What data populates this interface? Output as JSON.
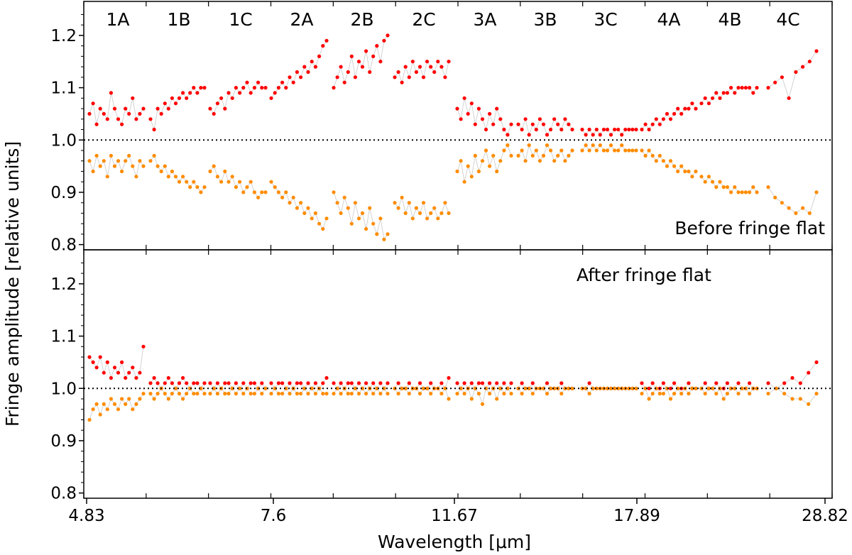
{
  "chart_data": {
    "type": "scatter",
    "xlabel": "Wavelength [μm]",
    "ylabel": "Fringe amplitude [relative units]",
    "x_tick_labels": [
      "4.83",
      "7.6",
      "11.67",
      "17.89",
      "28.82"
    ],
    "ylim": [
      0.79,
      1.265
    ],
    "y_ticks": [
      "0.8",
      "0.9",
      "1.0",
      "1.1",
      "1.2"
    ],
    "bands": [
      "1A",
      "1B",
      "1C",
      "2A",
      "2B",
      "2C",
      "3A",
      "3B",
      "3C",
      "4A",
      "4B",
      "4C"
    ],
    "reference_line": 1.0,
    "colors": {
      "upper": "#ff0000",
      "lower": "#ff8c00",
      "connector": "#c8c8c8",
      "refline": "#000000"
    },
    "panels": [
      {
        "annotation": "Before fringe flat",
        "bands": [
          {
            "band": "1A",
            "upper": [
              1.05,
              1.07,
              1.03,
              1.06,
              1.05,
              1.04,
              1.09,
              1.06,
              1.04,
              1.03,
              1.06,
              1.05,
              1.08,
              1.04,
              1.05,
              1.06
            ],
            "lower": [
              0.96,
              0.94,
              0.97,
              0.95,
              0.96,
              0.93,
              0.97,
              0.95,
              0.96,
              0.94,
              0.96,
              0.97,
              0.95,
              0.93,
              0.96,
              0.95
            ]
          },
          {
            "band": "1B",
            "upper": [
              1.04,
              1.02,
              1.06,
              1.05,
              1.07,
              1.06,
              1.08,
              1.07,
              1.08,
              1.09,
              1.08,
              1.09,
              1.1,
              1.09,
              1.1,
              1.1
            ],
            "lower": [
              0.96,
              0.97,
              0.95,
              0.94,
              0.95,
              0.93,
              0.94,
              0.93,
              0.92,
              0.93,
              0.92,
              0.91,
              0.92,
              0.91,
              0.9,
              0.91
            ]
          },
          {
            "band": "1C",
            "upper": [
              1.06,
              1.05,
              1.07,
              1.08,
              1.06,
              1.09,
              1.08,
              1.1,
              1.09,
              1.1,
              1.11,
              1.09,
              1.1,
              1.11,
              1.1,
              1.1
            ],
            "lower": [
              0.94,
              0.95,
              0.93,
              0.92,
              0.94,
              0.92,
              0.93,
              0.91,
              0.92,
              0.9,
              0.91,
              0.92,
              0.9,
              0.89,
              0.9,
              0.9
            ]
          },
          {
            "band": "2A",
            "upper": [
              1.08,
              1.09,
              1.1,
              1.11,
              1.1,
              1.12,
              1.11,
              1.13,
              1.12,
              1.14,
              1.13,
              1.15,
              1.14,
              1.16,
              1.18,
              1.19
            ],
            "lower": [
              0.92,
              0.91,
              0.9,
              0.89,
              0.9,
              0.88,
              0.89,
              0.87,
              0.88,
              0.86,
              0.87,
              0.85,
              0.86,
              0.84,
              0.83,
              0.85
            ]
          },
          {
            "band": "2B",
            "upper": [
              1.1,
              1.12,
              1.14,
              1.11,
              1.13,
              1.16,
              1.12,
              1.15,
              1.14,
              1.17,
              1.13,
              1.16,
              1.18,
              1.15,
              1.19,
              1.2
            ],
            "lower": [
              0.9,
              0.88,
              0.86,
              0.89,
              0.87,
              0.84,
              0.88,
              0.85,
              0.86,
              0.83,
              0.87,
              0.84,
              0.82,
              0.85,
              0.81,
              0.82
            ]
          },
          {
            "band": "2C",
            "upper": [
              1.12,
              1.13,
              1.11,
              1.14,
              1.12,
              1.15,
              1.13,
              1.14,
              1.12,
              1.15,
              1.14,
              1.13,
              1.15,
              1.14,
              1.12,
              1.15
            ],
            "lower": [
              0.88,
              0.87,
              0.89,
              0.86,
              0.88,
              0.85,
              0.87,
              0.86,
              0.88,
              0.85,
              0.86,
              0.87,
              0.85,
              0.86,
              0.88,
              0.86
            ]
          },
          {
            "band": "3A",
            "upper": [
              1.06,
              1.04,
              1.08,
              1.05,
              1.07,
              1.03,
              1.06,
              1.04,
              1.02,
              1.05,
              1.03,
              1.06,
              1.04,
              1.02,
              1.01,
              1.03
            ],
            "lower": [
              0.94,
              0.96,
              0.92,
              0.95,
              0.93,
              0.97,
              0.94,
              0.96,
              0.98,
              0.95,
              0.97,
              0.94,
              0.96,
              0.98,
              0.99,
              0.97
            ]
          },
          {
            "band": "3B",
            "upper": [
              1.03,
              1.02,
              1.04,
              1.01,
              1.03,
              1.02,
              1.04,
              1.03,
              1.01,
              1.02,
              1.04,
              1.03,
              1.02,
              1.04,
              1.03,
              1.02
            ],
            "lower": [
              0.97,
              0.98,
              0.96,
              0.99,
              0.97,
              0.98,
              0.96,
              0.97,
              0.99,
              0.98,
              0.96,
              0.97,
              0.98,
              0.96,
              0.97,
              0.98
            ]
          },
          {
            "band": "3C",
            "upper": [
              1.02,
              1.01,
              1.02,
              1.01,
              1.02,
              1.01,
              1.02,
              1.02,
              1.01,
              1.02,
              1.02,
              1.01,
              1.02,
              1.02,
              1.02,
              1.02
            ],
            "lower": [
              0.98,
              0.99,
              0.98,
              0.99,
              0.98,
              0.99,
              0.98,
              0.98,
              0.99,
              0.98,
              0.98,
              0.99,
              0.98,
              0.98,
              0.98,
              0.98
            ]
          },
          {
            "band": "4A",
            "upper": [
              1.02,
              1.03,
              1.02,
              1.03,
              1.04,
              1.03,
              1.04,
              1.05,
              1.04,
              1.05,
              1.06,
              1.05,
              1.06,
              1.06,
              1.07,
              1.06
            ],
            "lower": [
              0.98,
              0.97,
              0.98,
              0.97,
              0.96,
              0.97,
              0.96,
              0.95,
              0.96,
              0.95,
              0.94,
              0.95,
              0.94,
              0.94,
              0.93,
              0.94
            ]
          },
          {
            "band": "4B",
            "upper": [
              1.07,
              1.08,
              1.07,
              1.08,
              1.09,
              1.08,
              1.09,
              1.09,
              1.1,
              1.09,
              1.1,
              1.1,
              1.1,
              1.1,
              1.09,
              1.1
            ],
            "lower": [
              0.93,
              0.92,
              0.93,
              0.92,
              0.91,
              0.92,
              0.91,
              0.91,
              0.9,
              0.91,
              0.9,
              0.9,
              0.9,
              0.9,
              0.91,
              0.9
            ]
          },
          {
            "band": "4C",
            "upper": [
              1.1,
              1.11,
              1.12,
              1.08,
              1.13,
              1.14,
              1.15,
              1.17
            ],
            "lower": [
              0.91,
              0.89,
              0.88,
              0.87,
              0.86,
              0.87,
              0.86,
              0.9
            ]
          }
        ]
      },
      {
        "annotation": "After fringe flat",
        "bands": [
          {
            "band": "1A",
            "upper": [
              1.06,
              1.05,
              1.04,
              1.06,
              1.03,
              1.05,
              1.02,
              1.04,
              1.03,
              1.05,
              1.02,
              1.03,
              1.04,
              1.02,
              1.03,
              1.08
            ],
            "lower": [
              0.94,
              0.96,
              0.97,
              0.95,
              0.97,
              0.96,
              0.98,
              0.97,
              0.96,
              0.98,
              0.97,
              0.98,
              0.96,
              0.97,
              0.98,
              0.99
            ]
          },
          {
            "band": "1B",
            "upper": [
              1.01,
              1.02,
              1.01,
              1.0,
              1.01,
              1.02,
              1.01,
              1.0,
              1.01,
              1.02,
              1.01,
              1.0,
              1.01,
              1.01,
              1.0,
              1.01
            ],
            "lower": [
              0.99,
              0.98,
              0.99,
              1.0,
              0.99,
              0.98,
              0.99,
              1.0,
              0.99,
              0.98,
              0.99,
              1.0,
              0.99,
              0.99,
              1.0,
              0.99
            ]
          },
          {
            "band": "1C",
            "upper": [
              1.01,
              1.0,
              1.01,
              1.0,
              1.01,
              1.01,
              1.0,
              1.01,
              1.0,
              1.01,
              1.0,
              1.01,
              1.01,
              1.0,
              1.01,
              1.0
            ],
            "lower": [
              0.99,
              1.0,
              0.99,
              1.0,
              0.99,
              0.99,
              1.0,
              0.99,
              1.0,
              0.99,
              1.0,
              0.99,
              0.99,
              1.0,
              0.99,
              1.0
            ]
          },
          {
            "band": "2A",
            "upper": [
              1.01,
              1.0,
              1.01,
              1.01,
              1.0,
              1.01,
              1.0,
              1.01,
              1.01,
              1.0,
              1.01,
              1.0,
              1.01,
              1.0,
              1.01,
              1.02
            ],
            "lower": [
              0.99,
              1.0,
              0.99,
              0.99,
              1.0,
              0.99,
              1.0,
              0.99,
              0.99,
              1.0,
              0.99,
              1.0,
              0.99,
              1.0,
              0.99,
              0.99
            ]
          },
          {
            "band": "2B",
            "upper": [
              1.01,
              1.0,
              1.01,
              1.0,
              1.01,
              1.01,
              1.0,
              1.01,
              1.0,
              1.01,
              1.0,
              1.01,
              1.0,
              1.01,
              1.0,
              1.01
            ],
            "lower": [
              0.99,
              1.0,
              0.99,
              1.0,
              0.99,
              0.99,
              1.0,
              0.99,
              1.0,
              0.99,
              1.0,
              0.99,
              1.0,
              0.99,
              1.0,
              0.99
            ]
          },
          {
            "band": "2C",
            "upper": [
              1.0,
              1.01,
              1.0,
              1.0,
              1.01,
              1.0,
              1.0,
              1.01,
              1.0,
              1.0,
              1.01,
              1.0,
              1.0,
              1.01,
              1.0,
              1.02
            ],
            "lower": [
              1.0,
              0.99,
              1.0,
              1.0,
              0.99,
              1.0,
              1.0,
              0.99,
              1.0,
              1.0,
              0.99,
              1.0,
              1.0,
              0.99,
              1.0,
              0.98
            ]
          },
          {
            "band": "3A",
            "upper": [
              1.01,
              1.0,
              1.01,
              1.0,
              1.01,
              1.0,
              1.01,
              1.01,
              1.0,
              1.01,
              1.0,
              1.01,
              1.0,
              1.01,
              1.0,
              1.01
            ],
            "lower": [
              0.99,
              1.0,
              0.99,
              1.0,
              0.98,
              1.0,
              0.99,
              0.97,
              1.0,
              0.99,
              1.0,
              0.98,
              1.0,
              0.99,
              1.0,
              0.99
            ]
          },
          {
            "band": "3B",
            "upper": [
              1.0,
              1.01,
              1.0,
              1.0,
              1.01,
              1.0,
              1.0,
              1.0,
              1.01,
              1.0,
              1.0,
              1.0,
              1.01,
              1.0,
              1.0,
              1.0
            ],
            "lower": [
              1.0,
              0.99,
              1.0,
              1.0,
              0.99,
              1.0,
              1.0,
              1.0,
              0.99,
              1.0,
              1.0,
              1.0,
              0.99,
              1.0,
              1.0,
              1.0
            ]
          },
          {
            "band": "3C",
            "upper": [
              1.0,
              1.0,
              1.01,
              1.0,
              1.0,
              1.0,
              1.0,
              1.0,
              1.0,
              1.0,
              1.0,
              1.0,
              1.0,
              1.0,
              1.0,
              1.0
            ],
            "lower": [
              1.0,
              1.0,
              0.99,
              1.0,
              1.0,
              1.0,
              1.0,
              1.0,
              1.0,
              1.0,
              1.0,
              1.0,
              1.0,
              1.0,
              1.0,
              1.0
            ]
          },
          {
            "band": "4A",
            "upper": [
              1.01,
              1.0,
              1.0,
              1.01,
              1.0,
              1.0,
              1.01,
              1.0,
              1.0,
              1.01,
              1.0,
              1.0,
              1.0,
              1.01,
              1.0,
              1.0
            ],
            "lower": [
              0.99,
              1.0,
              0.98,
              0.99,
              1.0,
              0.99,
              0.99,
              1.0,
              0.98,
              0.99,
              1.0,
              0.99,
              1.0,
              0.99,
              1.0,
              1.0
            ]
          },
          {
            "band": "4B",
            "upper": [
              1.0,
              1.01,
              1.0,
              1.0,
              1.01,
              1.0,
              1.0,
              1.01,
              1.0,
              1.0,
              1.01,
              1.0,
              1.0,
              1.01,
              1.0,
              1.0
            ],
            "lower": [
              1.0,
              0.99,
              1.0,
              1.0,
              0.99,
              1.0,
              0.98,
              0.99,
              1.0,
              1.0,
              0.99,
              1.0,
              1.0,
              0.99,
              1.0,
              1.0
            ]
          },
          {
            "band": "4C",
            "upper": [
              1.01,
              1.0,
              1.01,
              1.02,
              1.01,
              1.03,
              1.05
            ],
            "lower": [
              0.99,
              1.0,
              0.99,
              0.98,
              0.98,
              0.97,
              0.99
            ]
          }
        ]
      }
    ]
  }
}
